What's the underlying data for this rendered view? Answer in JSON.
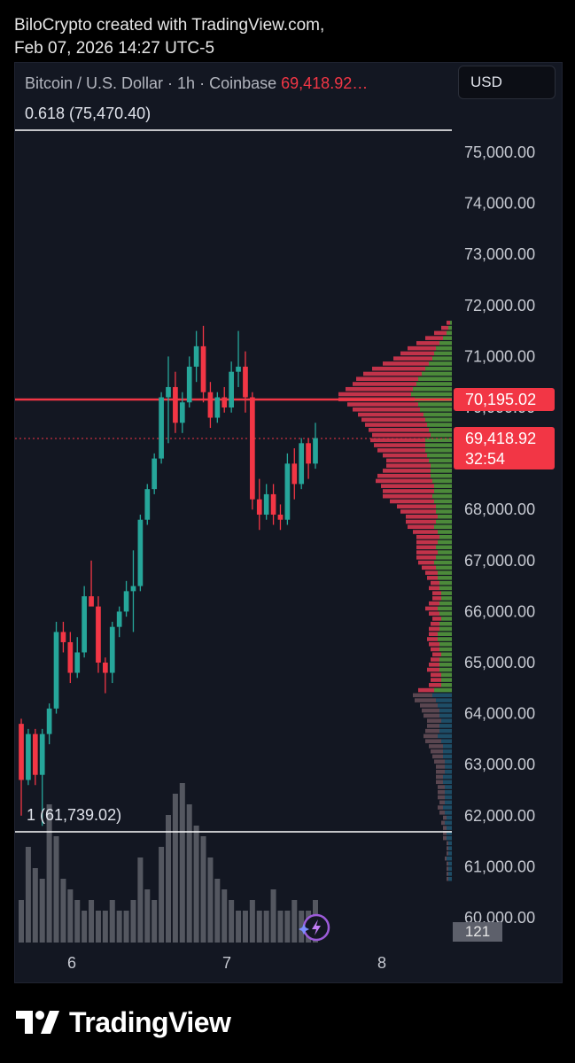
{
  "credit": {
    "line1": "BiloCrypto created with TradingView.com,",
    "line2": "Feb 07, 2026 14:27 UTC-5"
  },
  "header": {
    "symbol": "Bitcoin / U.S. Dollar · 1h · Coinbase",
    "price": "69,418.92…",
    "currency_button": "USD"
  },
  "levels": {
    "fib_top_label": "0.618 (75,470.40)",
    "fib_bottom_label": "1 (61,739.02)",
    "resistance_tag": "70,195.02",
    "price_tag": "69,418.92",
    "countdown": "32:54",
    "volume_tag": "121"
  },
  "colors": {
    "up": "#26a69a",
    "down": "#f23645",
    "volume": "#6b6d75",
    "profile_up": "#4c8a3a",
    "profile_down": "#c2334a",
    "background": "#131722"
  },
  "icons": {
    "brand": "tradingview-logo-icon",
    "assist": "lightning-sparkle-icon"
  },
  "brand": "TradingView",
  "chart_data": {
    "type": "candlestick",
    "title": "Bitcoin / U.S. Dollar · 1h · Coinbase",
    "x_ticks": [
      "6",
      "7",
      "8"
    ],
    "y_ticks": [
      "75,000.00",
      "74,000.00",
      "73,000.00",
      "72,000.00",
      "71,000.00",
      "70,000.00",
      "68,000.00",
      "67,000.00",
      "66,000.00",
      "65,000.00",
      "64,000.00",
      "63,000.00",
      "62,000.00",
      "61,000.00",
      "60,000.00"
    ],
    "ylim": [
      60000,
      76000
    ],
    "horizontal_lines": [
      {
        "label": "0.618 (75,470.40)",
        "value": 75470.4
      },
      {
        "label": "1 (61,739.02)",
        "value": 61739.02
      },
      {
        "label": "70,195.02",
        "value": 70195.02
      },
      {
        "label": "69,418.92",
        "value": 69418.92
      }
    ],
    "candles": [
      [
        63800,
        63900,
        62000,
        62700
      ],
      [
        62700,
        63700,
        62600,
        63600
      ],
      [
        63600,
        63700,
        62600,
        62800
      ],
      [
        62800,
        63700,
        61800,
        63600
      ],
      [
        63600,
        64200,
        63400,
        64100
      ],
      [
        64100,
        65800,
        64000,
        65600
      ],
      [
        65600,
        65800,
        65200,
        65400
      ],
      [
        65400,
        65600,
        64600,
        64800
      ],
      [
        64800,
        65500,
        64700,
        65200
      ],
      [
        65200,
        66500,
        65100,
        66300
      ],
      [
        66300,
        67000,
        66200,
        66100
      ],
      [
        66100,
        66300,
        64800,
        65000
      ],
      [
        65000,
        65100,
        64400,
        64800
      ],
      [
        64800,
        65800,
        64600,
        65700
      ],
      [
        65700,
        66100,
        65500,
        66000
      ],
      [
        66000,
        66600,
        65900,
        66400
      ],
      [
        66400,
        67200,
        65600,
        66500
      ],
      [
        66500,
        67900,
        66400,
        67800
      ],
      [
        67800,
        68500,
        67700,
        68400
      ],
      [
        68400,
        69100,
        68300,
        69000
      ],
      [
        69000,
        70300,
        68900,
        70200
      ],
      [
        70200,
        71000,
        69300,
        70400
      ],
      [
        70400,
        70700,
        69500,
        69700
      ],
      [
        69700,
        70300,
        69500,
        70100
      ],
      [
        70100,
        71000,
        70000,
        70800
      ],
      [
        70800,
        71500,
        70500,
        71200
      ],
      [
        71200,
        71600,
        70100,
        70300
      ],
      [
        70300,
        70500,
        69600,
        69800
      ],
      [
        69800,
        70300,
        69700,
        70200
      ],
      [
        70200,
        70400,
        69900,
        70000
      ],
      [
        70000,
        70900,
        69900,
        70700
      ],
      [
        70700,
        71500,
        70400,
        70800
      ],
      [
        70800,
        71100,
        69900,
        70200
      ],
      [
        70200,
        70300,
        68000,
        68200
      ],
      [
        68200,
        68600,
        67600,
        67900
      ],
      [
        67900,
        68500,
        67800,
        68300
      ],
      [
        68300,
        68500,
        67700,
        67900
      ],
      [
        67900,
        68100,
        67600,
        67800
      ],
      [
        67800,
        69100,
        67700,
        68900
      ],
      [
        68900,
        69200,
        68200,
        68500
      ],
      [
        68500,
        69400,
        68400,
        69300
      ],
      [
        69300,
        69400,
        68600,
        68900
      ],
      [
        68900,
        69700,
        68800,
        69400
      ]
    ],
    "volume": [
      4,
      9,
      7,
      6,
      13,
      10,
      6,
      5,
      4,
      3,
      4,
      3,
      3,
      4,
      3,
      3,
      4,
      8,
      5,
      4,
      9,
      12,
      14,
      15,
      13,
      11,
      10,
      8,
      6,
      5,
      4,
      3,
      3,
      4,
      3,
      3,
      5,
      3,
      3,
      4,
      3,
      3,
      4
    ],
    "volume_profile": {
      "bins_top": 71700,
      "bin_size": 100,
      "up_counts": [
        2,
        4,
        6,
        10,
        14,
        18,
        20,
        22,
        26,
        30,
        34,
        38,
        40,
        44,
        46,
        42,
        38,
        36,
        32,
        30,
        28,
        26,
        24,
        30,
        30,
        30,
        28,
        26,
        24,
        24,
        24,
        22,
        20,
        20,
        22,
        20,
        18,
        18,
        16,
        18,
        20,
        16,
        14,
        16,
        18,
        16,
        18,
        20,
        18,
        16,
        16,
        14,
        14,
        12,
        12,
        14,
        16,
        14,
        12,
        14,
        14,
        16,
        16,
        14,
        14,
        12,
        14,
        14,
        14,
        12,
        12,
        12,
        20,
        22,
        18,
        16,
        14,
        14,
        12,
        14,
        14,
        16,
        12,
        10,
        10,
        10,
        8,
        8,
        8,
        10,
        10,
        8,
        8,
        8,
        8,
        10,
        8,
        6,
        8,
        6,
        6,
        6,
        4,
        4,
        4,
        6,
        4,
        4,
        4,
        4
      ],
      "down_counts": [
        4,
        8,
        14,
        20,
        26,
        32,
        38,
        44,
        52,
        60,
        66,
        70,
        72,
        76,
        82,
        86,
        80,
        76,
        74,
        72,
        70,
        68,
        66,
        62,
        58,
        54,
        50,
        48,
        50,
        54,
        60,
        64,
        60,
        58,
        56,
        50,
        44,
        40,
        36,
        34,
        30,
        28,
        26,
        24,
        22,
        24,
        22,
        18,
        16,
        14,
        12,
        10,
        12,
        10,
        10,
        12,
        14,
        12,
        10,
        10,
        12,
        10,
        12,
        12,
        10,
        10,
        10,
        12,
        14,
        12,
        12,
        14,
        18,
        22,
        24,
        20,
        20,
        18,
        16,
        14,
        16,
        16,
        18,
        16,
        14,
        12,
        12,
        10,
        10,
        8,
        8,
        8,
        8,
        8,
        6,
        6,
        6,
        4,
        4,
        4,
        4,
        4,
        2,
        2,
        2,
        2,
        2,
        2,
        2,
        2
      ]
    }
  }
}
